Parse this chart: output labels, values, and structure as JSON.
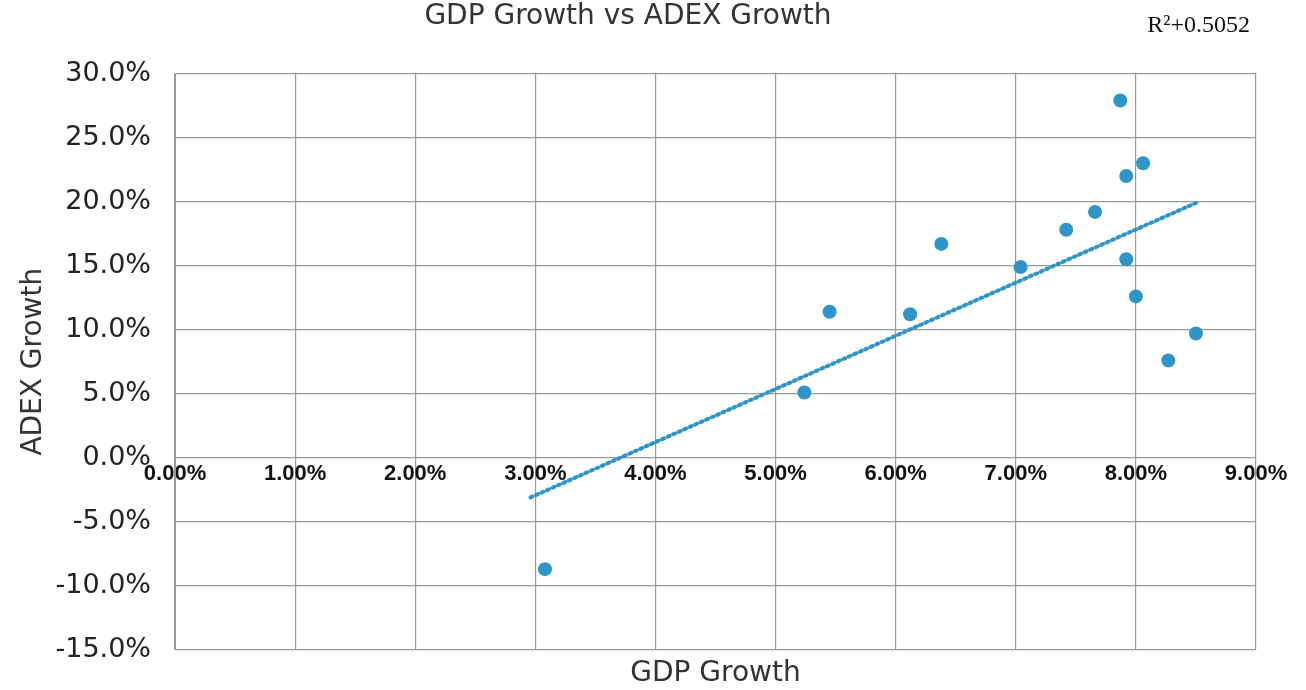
{
  "chart_data": {
    "type": "scatter",
    "title": "GDP Growth vs ADEX Growth",
    "xlabel": "GDP Growth",
    "ylabel": "ADEX Growth",
    "annotations": [
      "R²+0.5052"
    ],
    "series": [
      {
        "type": "scatter",
        "color": "#2e95c8",
        "marker": "circle",
        "x": [
          3.08,
          5.24,
          5.45,
          6.12,
          6.38,
          7.04,
          7.42,
          7.66,
          7.87,
          7.92,
          7.92,
          8.0,
          8.06,
          8.27,
          8.5
        ],
        "values": [
          -8.7,
          5.1,
          11.4,
          11.2,
          16.7,
          14.9,
          17.8,
          19.2,
          27.9,
          22.0,
          15.5,
          12.6,
          23.0,
          7.6,
          9.7
        ]
      },
      {
        "type": "line",
        "color": "#2e95c8",
        "marker": "none",
        "line_style": "dotted",
        "x": [
          2.96,
          8.5
        ],
        "values": [
          -3.1,
          19.9
        ]
      }
    ],
    "xlim": [
      0,
      9
    ],
    "ylim": [
      -15,
      30
    ],
    "xticks": [
      {
        "value": 0,
        "label": "0.00%"
      },
      {
        "value": 1,
        "label": "1.00%"
      },
      {
        "value": 2,
        "label": "2.00%"
      },
      {
        "value": 3,
        "label": "3.00%"
      },
      {
        "value": 4,
        "label": "4.00%"
      },
      {
        "value": 5,
        "label": "5.00%"
      },
      {
        "value": 6,
        "label": "6.00%"
      },
      {
        "value": 7,
        "label": "7.00%"
      },
      {
        "value": 8,
        "label": "8.00%"
      },
      {
        "value": 9,
        "label": "9.00%"
      }
    ],
    "yticks": [
      {
        "value": -15,
        "label": "-15.0%"
      },
      {
        "value": -10,
        "label": "-10.0%"
      },
      {
        "value": -5,
        "label": "-5.0%"
      },
      {
        "value": 0,
        "label": "0.0%"
      },
      {
        "value": 5,
        "label": "5.0%"
      },
      {
        "value": 10,
        "label": "10.0%"
      },
      {
        "value": 15,
        "label": "15.0%"
      },
      {
        "value": 20,
        "label": "20.0%"
      },
      {
        "value": 25,
        "label": "25.0%"
      },
      {
        "value": 30,
        "label": "30.0%"
      }
    ],
    "grid": true
  }
}
